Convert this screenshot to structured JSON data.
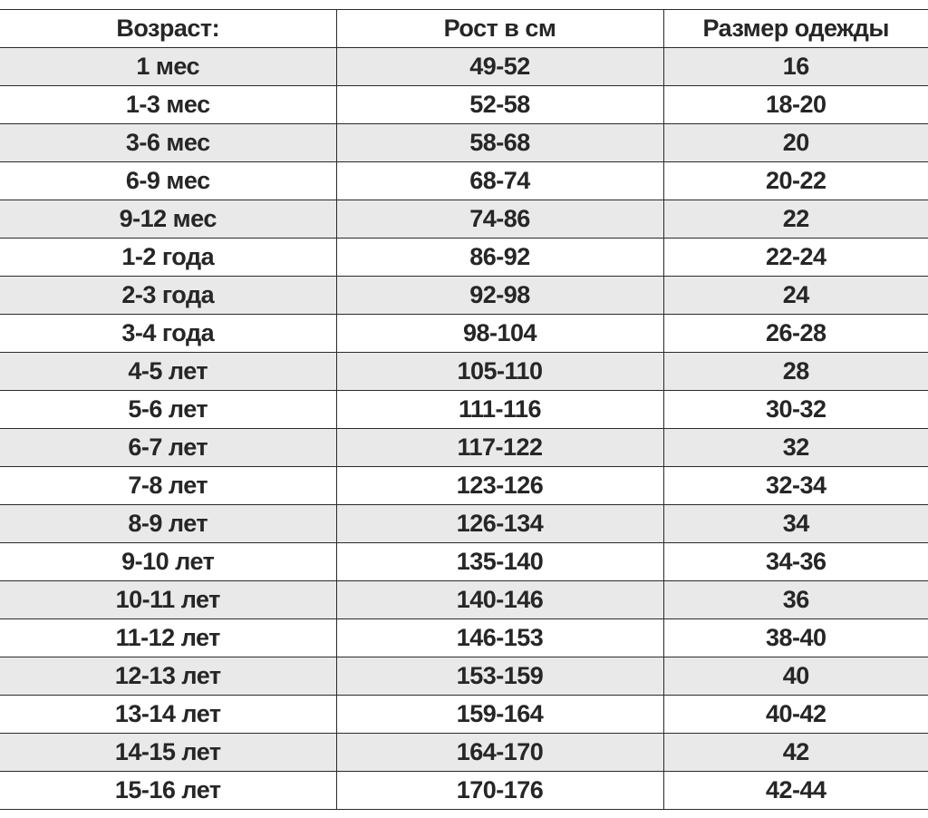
{
  "table": {
    "headers": [
      "Возраст:",
      "Рост в см",
      "Размер одежды"
    ],
    "rows": [
      [
        "1 мес",
        "49-52",
        "16"
      ],
      [
        "1-3 мес",
        "52-58",
        "18-20"
      ],
      [
        "3-6 мес",
        "58-68",
        "20"
      ],
      [
        "6-9 мес",
        "68-74",
        "20-22"
      ],
      [
        "9-12 мес",
        "74-86",
        "22"
      ],
      [
        "1-2 года",
        "86-92",
        "22-24"
      ],
      [
        "2-3 года",
        "92-98",
        "24"
      ],
      [
        "3-4 года",
        "98-104",
        "26-28"
      ],
      [
        "4-5 лет",
        "105-110",
        "28"
      ],
      [
        "5-6 лет",
        "111-116",
        "30-32"
      ],
      [
        "6-7 лет",
        "117-122",
        "32"
      ],
      [
        "7-8 лет",
        "123-126",
        "32-34"
      ],
      [
        "8-9 лет",
        "126-134",
        "34"
      ],
      [
        "9-10 лет",
        "135-140",
        "34-36"
      ],
      [
        "10-11 лет",
        "140-146",
        "36"
      ],
      [
        "11-12 лет",
        "146-153",
        "38-40"
      ],
      [
        "12-13 лет",
        "153-159",
        "40"
      ],
      [
        "13-14 лет",
        "159-164",
        "40-42"
      ],
      [
        "14-15 лет",
        "164-170",
        "42"
      ],
      [
        "15-16 лет",
        "170-176",
        "42-44"
      ]
    ]
  },
  "colors": {
    "text": "#262626",
    "stripe": "#e9e9e9",
    "border": "#2a2a2a",
    "background": "#ffffff"
  }
}
